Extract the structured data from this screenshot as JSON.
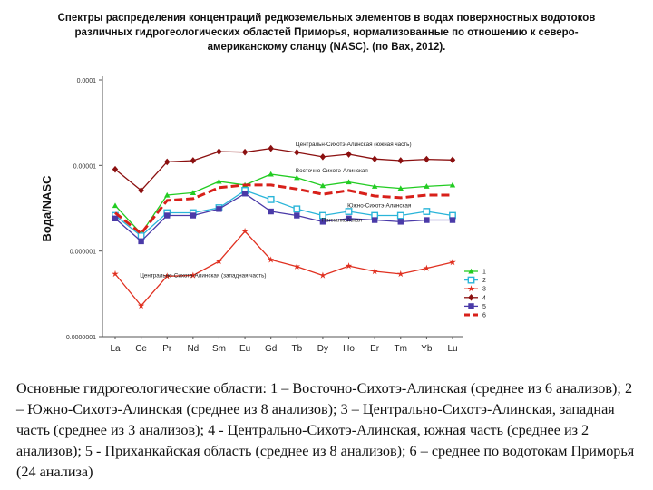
{
  "title_lines": [
    "Спектры распределения концентраций редкоземельных элементов в водах поверхностных водотоков",
    "различных гидрогеологических областей Приморья, нормализованные по отношению к северо-",
    "американскому сланцу (NASC). (по Вах, 2012)."
  ],
  "caption": "Основные гидрогеологические области: 1 – Восточно-Сихотэ-Алинская (среднее из 6 анализов); 2 – Южно-Сихотэ-Алинская (среднее из 8 анализов); 3 – Центрально-Сихотэ-Алинская, западная часть (среднее из 3 анализов); 4 - Центрально-Сихотэ-Алинская, южная часть (среднее из 2 анализов); 5 - Приханкайская область (среднее из 8 анализов); 6 – среднее по водотокам Приморья (24 анализа)",
  "chart_data": {
    "type": "line",
    "title": "Спектры распределения концентраций редкоземельных элементов в водах поверхностных водотоков различных гидрогеологических областей Приморья, нормализованные по отношению к северо-американскому сланцу (NASC). (по Вах, 2012).",
    "ylabel": "Вода/NASC",
    "xlabel": "",
    "yscale": "log",
    "ylim": [
      1e-07,
      0.0001
    ],
    "yticks": [
      0.0001,
      1e-05,
      1e-06,
      1e-07
    ],
    "ytick_labels": [
      "0.0001",
      "0.00001",
      "0.000001",
      "0.0000001"
    ],
    "categories": [
      "La",
      "Ce",
      "Pr",
      "Nd",
      "Sm",
      "Eu",
      "Gd",
      "Tb",
      "Dy",
      "Ho",
      "Er",
      "Tm",
      "Yb",
      "Lu"
    ],
    "legend_position": "bottom-right",
    "series": [
      {
        "name": "1",
        "color": "#22cc22",
        "marker": "triangle",
        "dash": false,
        "values": [
          3.4e-06,
          1.6e-06,
          4.5e-06,
          4.8e-06,
          6.5e-06,
          5.9e-06,
          7.9e-06,
          7.2e-06,
          5.8e-06,
          6.4e-06,
          5.7e-06,
          5.4e-06,
          5.7e-06,
          5.9e-06
        ]
      },
      {
        "name": "2",
        "color": "#2ab5d9",
        "marker": "square-open",
        "dash": false,
        "values": [
          2.6e-06,
          1.5e-06,
          2.8e-06,
          2.8e-06,
          3.2e-06,
          5.1e-06,
          4e-06,
          3.1e-06,
          2.6e-06,
          2.9e-06,
          2.6e-06,
          2.6e-06,
          2.9e-06,
          2.6e-06
        ]
      },
      {
        "name": "3",
        "color": "#e03020",
        "marker": "star",
        "dash": false,
        "values": [
          5.4e-07,
          2.3e-07,
          5.1e-07,
          5.2e-07,
          7.6e-07,
          1.7e-06,
          7.9e-07,
          6.6e-07,
          5.2e-07,
          6.7e-07,
          5.8e-07,
          5.4e-07,
          6.3e-07,
          7.4e-07
        ]
      },
      {
        "name": "4",
        "color": "#8b1010",
        "marker": "diamond",
        "dash": false,
        "values": [
          9e-06,
          5.1e-06,
          1.1e-05,
          1.14e-05,
          1.45e-05,
          1.43e-05,
          1.58e-05,
          1.42e-05,
          1.26e-05,
          1.35e-05,
          1.19e-05,
          1.14e-05,
          1.18e-05,
          1.16e-05
        ]
      },
      {
        "name": "5",
        "color": "#4a3aa8",
        "marker": "square",
        "dash": false,
        "values": [
          2.4e-06,
          1.3e-06,
          2.6e-06,
          2.6e-06,
          3.1e-06,
          4.7e-06,
          2.9e-06,
          2.6e-06,
          2.2e-06,
          2.4e-06,
          2.3e-06,
          2.2e-06,
          2.3e-06,
          2.3e-06
        ]
      },
      {
        "name": "6",
        "color": "#d8201a",
        "marker": "none",
        "dash": true,
        "values": [
          2.8e-06,
          1.6e-06,
          3.9e-06,
          4.1e-06,
          5.5e-06,
          5.9e-06,
          5.9e-06,
          5.3e-06,
          4.6e-06,
          5.1e-06,
          4.4e-06,
          4.2e-06,
          4.5e-06,
          4.5e-06
        ]
      }
    ],
    "annotations": [
      {
        "text": "Центральн-Сихотэ-Алинская (южная часть)",
        "x": "Dy",
        "y": 1.6e-05,
        "series": "4"
      },
      {
        "text": "Восточно-Сихотэ-Алинская",
        "x": "Dy",
        "y": 7.9e-06,
        "series": "1"
      },
      {
        "text": "Южно-Сихотэ-Алинская",
        "x": "Er",
        "y": 3.1e-06,
        "series": "2"
      },
      {
        "text": "Приханкайская",
        "x": "Ho",
        "y": 2.1e-06,
        "series": "5"
      },
      {
        "text": "Центрально-Сихотэ-Алинская (западная часть)",
        "x": "Pr",
        "y": 4.7e-07,
        "series": "3"
      }
    ]
  }
}
